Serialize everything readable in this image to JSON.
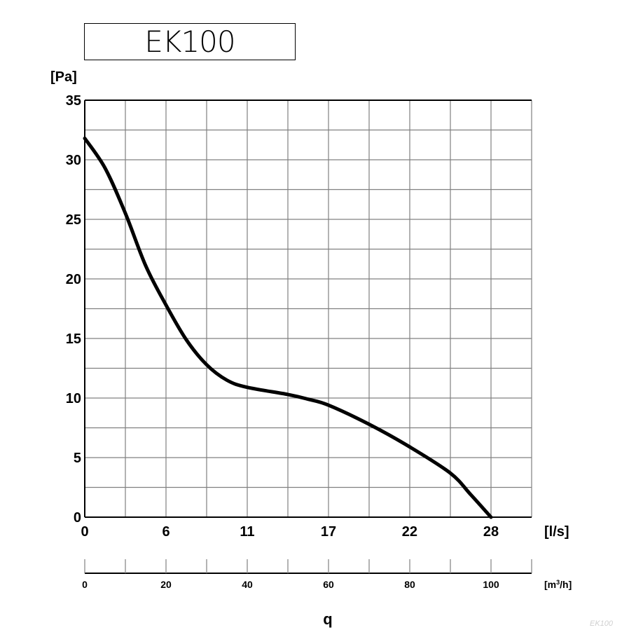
{
  "chart_data": {
    "type": "line",
    "title": "EK100",
    "ylabel": "[Pa]",
    "xlabel": "[l/s]",
    "secondary_xlabel": "[m3/h]",
    "secondary_xlabel_parts": {
      "pre": "[m",
      "sup": "3",
      "post": "/h]"
    },
    "axis_name": "q",
    "watermark": "EK100",
    "ylim": [
      0,
      35
    ],
    "xlim": [
      0,
      30.56
    ],
    "grid": true,
    "yticks": [
      0,
      5,
      10,
      15,
      20,
      25,
      30,
      35
    ],
    "xticks": [
      {
        "value": 0,
        "label": "0"
      },
      {
        "value": 5.56,
        "label": "6"
      },
      {
        "value": 11.11,
        "label": "11"
      },
      {
        "value": 16.67,
        "label": "17"
      },
      {
        "value": 22.22,
        "label": "22"
      },
      {
        "value": 27.78,
        "label": "28"
      }
    ],
    "secondary_xlim": [
      0,
      110
    ],
    "secondary_xticks": [
      0,
      20,
      40,
      60,
      80,
      100
    ],
    "series": [
      {
        "color": "#000000",
        "x": [
          0,
          1.39,
          2.78,
          4.17,
          5.56,
          6.94,
          8.33,
          9.72,
          11.11,
          13.89,
          15.28,
          16.67,
          19.44,
          22.22,
          25.0,
          26.39,
          27.78
        ],
        "y": [
          31.8,
          29.3,
          25.5,
          21.1,
          17.8,
          14.9,
          12.8,
          11.5,
          10.9,
          10.3,
          9.9,
          9.4,
          7.8,
          5.9,
          3.7,
          1.9,
          0
        ]
      }
    ]
  }
}
